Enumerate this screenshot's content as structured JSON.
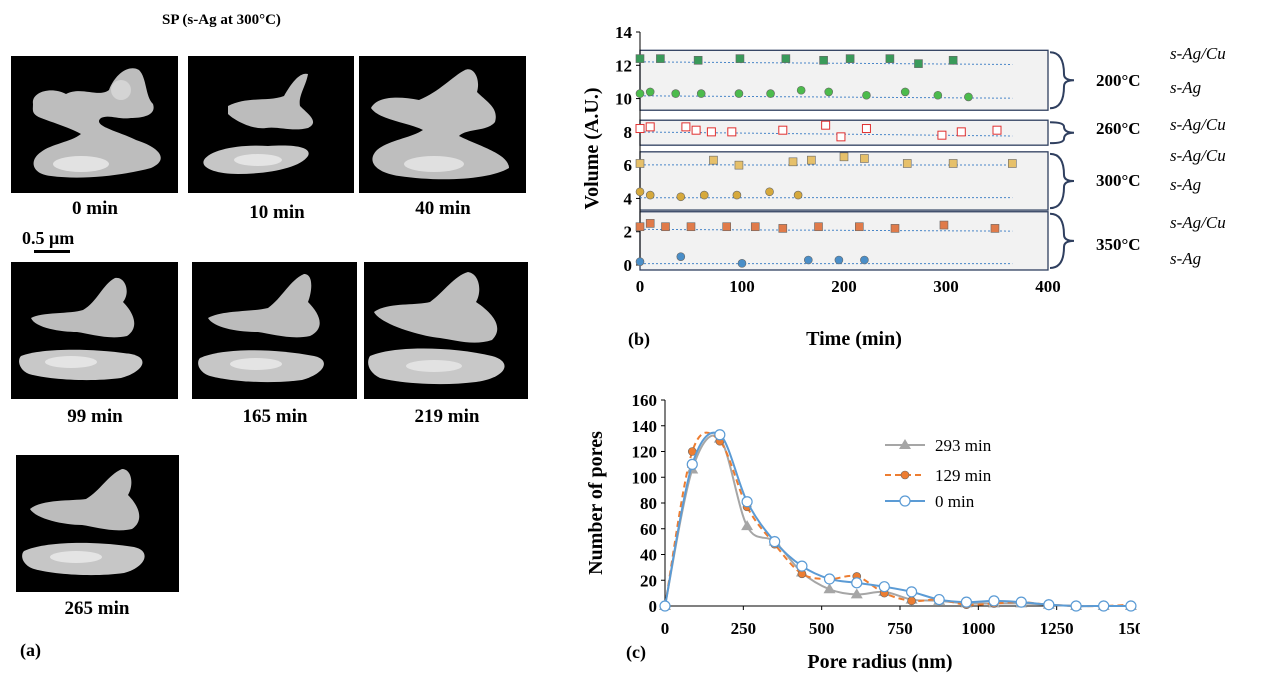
{
  "panel_a": {
    "title": "SP (s-Ag at 300°C)",
    "label": "(a)",
    "scalebar": "0.5 μm",
    "images": [
      {
        "caption": "0 min"
      },
      {
        "caption": "10 min"
      },
      {
        "caption": "40 min"
      },
      {
        "caption": "99 min"
      },
      {
        "caption": "165 min"
      },
      {
        "caption": "219 min"
      },
      {
        "caption": "265 min"
      }
    ]
  },
  "chart_data": [
    {
      "type": "scatter",
      "label": "(b)",
      "xlabel": "Time (min)",
      "ylabel": "Volume (A.U.)",
      "xlim": [
        0,
        400
      ],
      "ylim": [
        0,
        14
      ],
      "xticks": [
        0,
        100,
        200,
        300,
        400
      ],
      "yticks": [
        0,
        2,
        4,
        6,
        8,
        10,
        12,
        14
      ],
      "groups": [
        {
          "temp": "200°C",
          "labels": [
            "s-Ag/Cu",
            "s-Ag"
          ],
          "yrange": [
            9.3,
            12.9
          ]
        },
        {
          "temp": "260°C",
          "labels": [
            "s-Ag/Cu"
          ],
          "yrange": [
            7.2,
            8.7
          ]
        },
        {
          "temp": "300°C",
          "labels": [
            "s-Ag/Cu",
            "s-Ag"
          ],
          "yrange": [
            3.3,
            6.8
          ]
        },
        {
          "temp": "350°C",
          "labels": [
            "s-Ag/Cu",
            "s-Ag"
          ],
          "yrange": [
            -0.3,
            3.2
          ]
        }
      ],
      "series": [
        {
          "name": "s-Ag/Cu 200°C",
          "marker": "square-filled",
          "color": "#3a9a5a",
          "x": [
            0,
            20,
            57,
            98,
            143,
            180,
            206,
            245,
            273,
            307
          ],
          "y": [
            12.4,
            12.4,
            12.3,
            12.4,
            12.4,
            12.3,
            12.4,
            12.4,
            12.1,
            12.3
          ]
        },
        {
          "name": "s-Ag 200°C",
          "marker": "circle-filled",
          "color": "#4cbb4c",
          "x": [
            0,
            10,
            35,
            60,
            97,
            128,
            158,
            185,
            222,
            260,
            292,
            322
          ],
          "y": [
            10.3,
            10.4,
            10.3,
            10.3,
            10.3,
            10.3,
            10.5,
            10.4,
            10.2,
            10.4,
            10.2,
            10.1
          ]
        },
        {
          "name": "s-Ag/Cu 260°C",
          "marker": "square-open",
          "color": "#e03030",
          "x": [
            0,
            10,
            45,
            55,
            70,
            90,
            140,
            182,
            197,
            222,
            296,
            315,
            350
          ],
          "y": [
            8.2,
            8.3,
            8.3,
            8.1,
            8.0,
            8.0,
            8.1,
            8.4,
            7.7,
            8.2,
            7.8,
            8.0,
            8.1
          ]
        },
        {
          "name": "s-Ag/Cu 300°C",
          "marker": "square-filled",
          "color": "#e6c06a",
          "x": [
            0,
            72,
            97,
            150,
            168,
            200,
            220,
            262,
            307,
            365
          ],
          "y": [
            6.1,
            6.3,
            6.0,
            6.2,
            6.3,
            6.5,
            6.4,
            6.1,
            6.1,
            6.1
          ]
        },
        {
          "name": "s-Ag 300°C",
          "marker": "circle-filled",
          "color": "#d6a93c",
          "x": [
            0,
            10,
            40,
            63,
            95,
            127,
            155
          ],
          "y": [
            4.4,
            4.2,
            4.1,
            4.2,
            4.2,
            4.4,
            4.2
          ]
        },
        {
          "name": "s-Ag/Cu 350°C",
          "marker": "square-filled",
          "color": "#e07b4a",
          "x": [
            0,
            10,
            25,
            50,
            85,
            113,
            140,
            175,
            215,
            250,
            298,
            348
          ],
          "y": [
            2.3,
            2.5,
            2.3,
            2.3,
            2.3,
            2.3,
            2.2,
            2.3,
            2.3,
            2.2,
            2.4,
            2.2
          ]
        },
        {
          "name": "s-Ag 350°C",
          "marker": "circle-filled",
          "color": "#4a8ec8",
          "x": [
            0,
            40,
            100,
            165,
            195,
            220
          ],
          "y": [
            0.2,
            0.5,
            0.1,
            0.3,
            0.3,
            0.3
          ]
        }
      ]
    },
    {
      "type": "line",
      "label": "(c)",
      "xlabel": "Pore radius (nm)",
      "ylabel": "Number of pores",
      "xlim": [
        0,
        1500
      ],
      "ylim": [
        0,
        160
      ],
      "xticks": [
        0,
        250,
        500,
        750,
        1000,
        1250,
        1500
      ],
      "yticks": [
        0,
        20,
        40,
        60,
        80,
        100,
        120,
        140,
        160
      ],
      "legend": "right",
      "series": [
        {
          "name": "293 min",
          "color": "#a6a6a6",
          "marker": "triangle",
          "dash": "solid",
          "x": [
            0,
            87,
            175,
            262,
            350,
            437,
            525,
            612,
            700,
            787,
            875,
            962,
            1050,
            1137,
            1225,
            1312,
            1400,
            1487
          ],
          "y": [
            0,
            106,
            130,
            62,
            50,
            26,
            13,
            9,
            11,
            5,
            4,
            2,
            2,
            2,
            1,
            0,
            0,
            0
          ]
        },
        {
          "name": "129 min",
          "color": "#ed7d31",
          "marker": "circle-filled",
          "dash": "dashed",
          "x": [
            0,
            87,
            175,
            262,
            350,
            437,
            525,
            612,
            700,
            787,
            875,
            962,
            1050,
            1137,
            1225,
            1312,
            1400,
            1487
          ],
          "y": [
            0,
            120,
            128,
            77,
            48,
            25,
            21,
            23,
            10,
            4,
            5,
            1,
            2,
            3,
            1,
            0,
            0,
            1
          ]
        },
        {
          "name": "0 min",
          "color": "#5b9bd5",
          "marker": "circle-open",
          "dash": "solid",
          "x": [
            0,
            87,
            175,
            262,
            350,
            437,
            525,
            612,
            700,
            787,
            875,
            962,
            1050,
            1137,
            1225,
            1312,
            1400,
            1487
          ],
          "y": [
            0,
            110,
            133,
            81,
            50,
            31,
            21,
            18,
            15,
            11,
            5,
            3,
            4,
            3,
            1,
            0,
            0,
            0
          ]
        }
      ]
    }
  ]
}
